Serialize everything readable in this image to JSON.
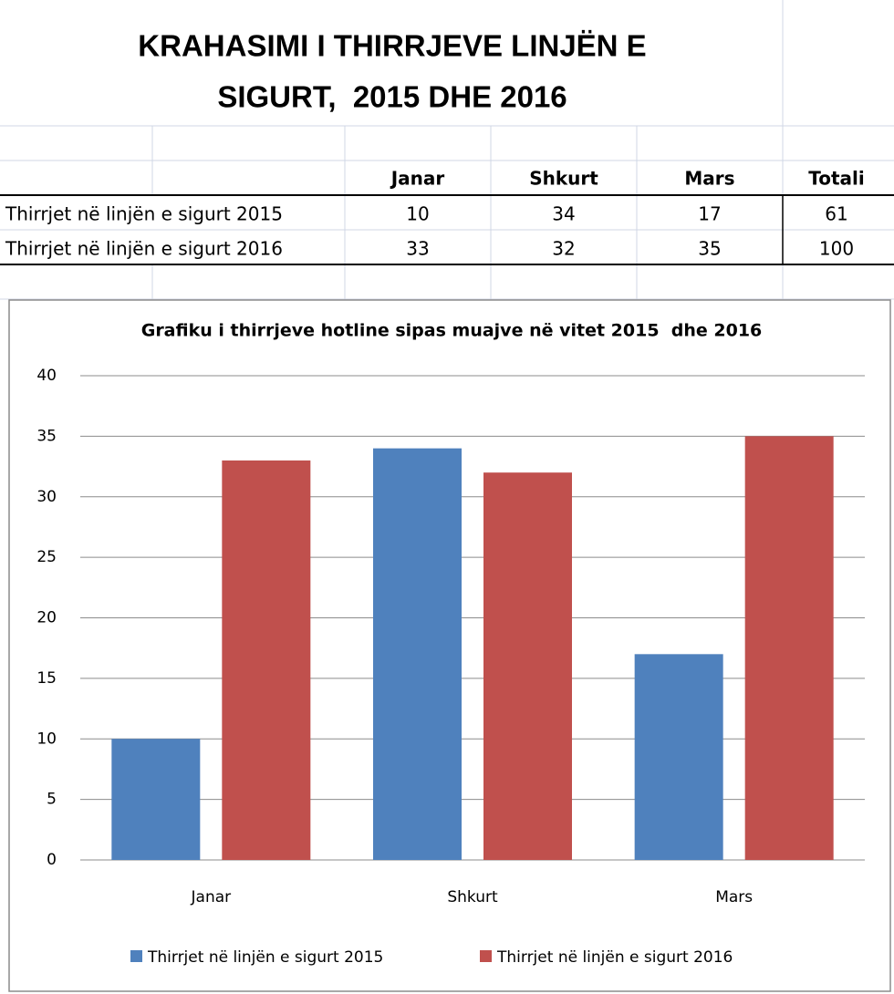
{
  "header": {
    "title": [
      "KRAHASIMI I THIRRJEVE LINJËN E",
      "SIGURT,  2015 DHE 2016"
    ]
  },
  "table": {
    "columns": [
      "Janar",
      "Shkurt",
      "Mars",
      "Totali"
    ],
    "rows": [
      [
        "Thirrjet në linjën e sigurt 2015",
        10,
        34,
        17,
        61
      ],
      [
        "Thirrjet në linjën e sigurt 2016",
        33,
        32,
        35,
        100
      ]
    ]
  },
  "chart_data": {
    "type": "bar",
    "title": "Grafiku i thirrjeve hotline sipas muajve në vitet 2015  dhe 2016",
    "categories": [
      "Janar",
      "Shkurt",
      "Mars"
    ],
    "series": [
      {
        "name": "Thirrjet në linjën e sigurt 2015",
        "color": "#4f81bd",
        "values": [
          10,
          34,
          17
        ]
      },
      {
        "name": "Thirrjet në linjën e sigurt 2016",
        "color": "#c0504d",
        "values": [
          33,
          32,
          35
        ]
      }
    ],
    "ylim": [
      0,
      40
    ],
    "yticks": [
      0,
      5,
      10,
      15,
      20,
      25,
      30,
      35,
      40
    ],
    "grid": true,
    "legend": "bottom"
  }
}
